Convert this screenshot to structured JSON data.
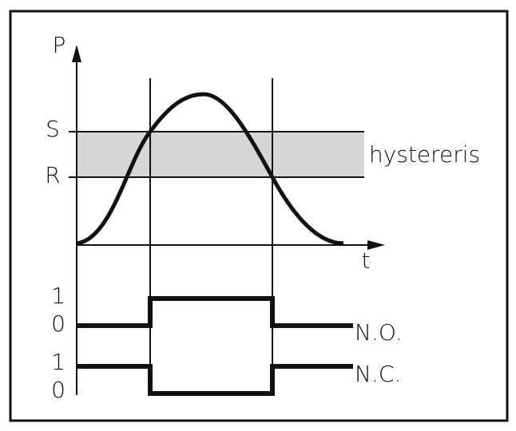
{
  "axis": {
    "y_label": "P",
    "x_label": "t"
  },
  "levels": {
    "set": "S",
    "reset": "R",
    "band_label": "hystereris"
  },
  "outputs": [
    {
      "label": "N.O.",
      "high": "1",
      "low": "0"
    },
    {
      "label": "N.C.",
      "high": "1",
      "low": "0"
    }
  ]
}
